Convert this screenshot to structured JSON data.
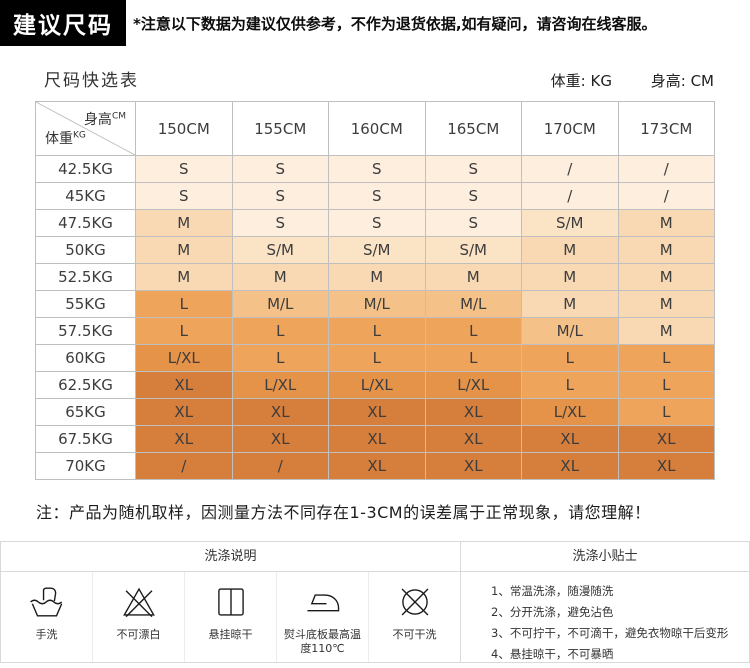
{
  "header": {
    "title": "建议尺码",
    "notice": "*注意以下数据为建议仅供参考，不作为退货依据,如有疑问，请咨询在线客服。"
  },
  "table": {
    "title": "尺码快选表",
    "unit_weight": "体重: KG",
    "unit_height": "身高: CM",
    "corner": {
      "top_label": "身高",
      "top_unit": "CM",
      "bottom_label": "体重",
      "bottom_unit": "KG"
    },
    "columns": [
      "150CM",
      "155CM",
      "160CM",
      "165CM",
      "170CM",
      "173CM"
    ],
    "size_colors": {
      "S": "#fdeedd",
      "S/M": "#fbe3c6",
      "M": "#f8d9b4",
      "M/L": "#f4c189",
      "L": "#efa45b",
      "L/XL": "#e6934a",
      "XL": "#d67e3b"
    },
    "rows": [
      {
        "weight": "42.5KG",
        "cells": [
          "S",
          "S",
          "S",
          "S",
          "/",
          "/"
        ],
        "slash": "S"
      },
      {
        "weight": "45KG",
        "cells": [
          "S",
          "S",
          "S",
          "S",
          "/",
          "/"
        ],
        "slash": "S"
      },
      {
        "weight": "47.5KG",
        "cells": [
          "M",
          "S",
          "S",
          "S",
          "S/M",
          "M"
        ]
      },
      {
        "weight": "50KG",
        "cells": [
          "M",
          "S/M",
          "S/M",
          "S/M",
          "M",
          "M"
        ]
      },
      {
        "weight": "52.5KG",
        "cells": [
          "M",
          "M",
          "M",
          "M",
          "M",
          "M"
        ]
      },
      {
        "weight": "55KG",
        "cells": [
          "L",
          "M/L",
          "M/L",
          "M/L",
          "M",
          "M"
        ]
      },
      {
        "weight": "57.5KG",
        "cells": [
          "L",
          "L",
          "L",
          "L",
          "M/L",
          "M"
        ]
      },
      {
        "weight": "60KG",
        "cells": [
          "L/XL",
          "L",
          "L",
          "L",
          "L",
          "L"
        ]
      },
      {
        "weight": "62.5KG",
        "cells": [
          "XL",
          "L/XL",
          "L/XL",
          "L/XL",
          "L",
          "L"
        ]
      },
      {
        "weight": "65KG",
        "cells": [
          "XL",
          "XL",
          "XL",
          "XL",
          "L/XL",
          "L"
        ]
      },
      {
        "weight": "67.5KG",
        "cells": [
          "XL",
          "XL",
          "XL",
          "XL",
          "XL",
          "XL"
        ]
      },
      {
        "weight": "70KG",
        "cells": [
          "/",
          "/",
          "XL",
          "XL",
          "XL",
          "XL"
        ],
        "slash": "XL"
      }
    ]
  },
  "note": "注：产品为随机取样，因测量方法不同存在1-3CM的误差属于正常现象，请您理解！",
  "care": {
    "left_title": "洗涤说明",
    "right_title": "洗涤小贴士",
    "items": [
      {
        "icon": "hand-wash-icon",
        "label": "手洗"
      },
      {
        "icon": "no-bleach-icon",
        "label": "不可漂白"
      },
      {
        "icon": "hang-dry-icon",
        "label": "悬挂晾干"
      },
      {
        "icon": "iron-max-110-icon",
        "label": "熨斗底板最高温度110℃"
      },
      {
        "icon": "no-dry-clean-icon",
        "label": "不可干洗"
      }
    ],
    "tips": [
      "1、常温洗涤，随漫随洗",
      "2、分开洗涤，避免沾色",
      "3、不可拧干，不可滴干，避免衣物晾干后变形",
      "4、悬挂晾干，不可暴晒"
    ]
  }
}
